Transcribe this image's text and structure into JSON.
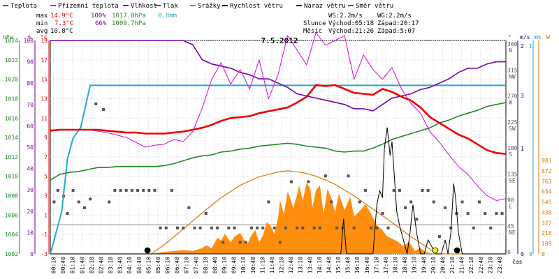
{
  "chart_data": {
    "type": "line",
    "title": "7.5.2012",
    "legend": [
      {
        "key": "temp",
        "label": "Teplota",
        "color": "#ee0000"
      },
      {
        "key": "dew",
        "label": "Přízemní teplota",
        "color": "#dd00dd"
      },
      {
        "key": "hum",
        "label": "Vlhkost",
        "color": "#7700aa"
      },
      {
        "key": "press",
        "label": "Tlak",
        "color": "#228822"
      },
      {
        "key": "rain",
        "label": "Srážky",
        "color": "#22aacc"
      },
      {
        "key": "wind",
        "label": "Rychlost větru",
        "color": "#000000"
      },
      {
        "key": "gust",
        "label": "Náraz větru",
        "color": "#000077"
      },
      {
        "key": "dir",
        "label": "Směr větru",
        "color": "#555555"
      }
    ],
    "stats": {
      "max_label": "max",
      "max_temp": "14.9°C",
      "max_hum": "100%",
      "max_press": "1017.8hPa",
      "max_rain": "0.8mm",
      "min_label": "min",
      "min_temp": "7.3°C",
      "min_hum": "66%",
      "min_press": "1009.7hPa",
      "avg_label": "avg",
      "avg_temp": "10.8°C",
      "ws": "WS:2.2m/s",
      "wg": "WG:2.2m/s",
      "sun_label": "Slunce",
      "sunrise": "Východ:05:18",
      "sunset": "Západ:20:17",
      "moon_label": "Měsíc",
      "moonrise": "Východ:21:26",
      "moonset": "Západ:5:07"
    },
    "axes": {
      "hpa_unit": "hPa",
      "hum_unit": "%",
      "temp_unit": "°C",
      "dir_unit": "°",
      "wind_unit": "m/s",
      "rain_unit": "mm",
      "sun_unit": "W",
      "x_label": "čas",
      "hpa_ticks": [
        "1024",
        "1022",
        "1020",
        "1018",
        "1016",
        "1014",
        "1012",
        "1010",
        "1008",
        "1006",
        "1004",
        "1002"
      ],
      "hum_ticks": [
        "100",
        "90",
        "80",
        "70",
        "60",
        "50",
        "40",
        "30",
        "20",
        "10",
        "0"
      ],
      "temp_ticks": [
        "19",
        "17",
        "15",
        "13",
        "11",
        "9",
        "7",
        "5",
        "3",
        "1",
        "-1",
        "-3"
      ],
      "dir_ticks": [
        {
          "deg": "360",
          "name": "N"
        },
        {
          "deg": "315",
          "name": "NW"
        },
        {
          "deg": "270",
          "name": "W"
        },
        {
          "deg": "225",
          "name": "SW"
        },
        {
          "deg": "180",
          "name": "S"
        },
        {
          "deg": "135",
          "name": "SE"
        },
        {
          "deg": "90",
          "name": "E"
        },
        {
          "deg": "45",
          "name": "NE"
        },
        {
          "deg": "0",
          "name": ""
        }
      ],
      "wind_ticks": [
        "2",
        "",
        "3",
        "",
        "1",
        "",
        "0"
      ],
      "rain_ticks": [
        "1",
        "",
        "0"
      ],
      "sun_ticks": [
        "981",
        "872",
        "763",
        "654",
        "545",
        "436",
        "327",
        "218",
        "109",
        "0"
      ],
      "x_ticks": [
        "00:10",
        "00:40",
        "01:10",
        "01:40",
        "02:10",
        "02:40",
        "03:10",
        "03:40",
        "04:10",
        "04:40",
        "05:10",
        "05:40",
        "06:10",
        "06:40",
        "07:10",
        "07:40",
        "08:10",
        "08:40",
        "09:10",
        "09:40",
        "10:10",
        "10:40",
        "11:10",
        "11:40",
        "12:10",
        "12:40",
        "13:10",
        "13:40",
        "14:10",
        "14:40",
        "15:10",
        "15:40",
        "16:10",
        "16:40",
        "17:10",
        "17:40",
        "18:10",
        "18:40",
        "19:10",
        "19:40",
        "20:10",
        "20:40",
        "21:10",
        "21:40",
        "22:10",
        "22:40",
        "23:10",
        "23:40"
      ]
    },
    "temp_c": {
      "x": [
        0,
        0.5,
        1,
        1.5,
        2,
        2.5,
        3,
        3.5,
        4,
        4.5,
        5,
        5.5,
        6,
        6.5,
        7,
        7.5,
        8,
        8.5,
        9,
        9.5,
        10,
        10.5,
        11,
        11.5,
        12,
        12.5,
        13,
        13.5,
        14,
        14.5,
        15,
        15.5,
        16,
        16.5,
        17,
        17.5,
        18,
        18.5,
        19,
        19.5,
        20,
        20.5,
        21,
        21.5,
        22,
        22.5,
        23,
        23.5,
        24
      ],
      "y": [
        9.7,
        9.8,
        9.8,
        9.8,
        9.8,
        9.8,
        9.7,
        9.6,
        9.5,
        9.5,
        9.4,
        9.4,
        9.4,
        9.5,
        9.6,
        9.8,
        10.0,
        10.3,
        10.7,
        11.0,
        11.1,
        11.2,
        11.5,
        11.7,
        11.9,
        12.1,
        12.6,
        13.2,
        14.4,
        14.3,
        14.4,
        14.0,
        13.6,
        13.5,
        13.4,
        14.0,
        13.7,
        13.2,
        12.8,
        12.1,
        11.1,
        10.5,
        9.9,
        9.3,
        8.9,
        8.3,
        7.7,
        7.4,
        7.3
      ]
    },
    "dew_c": {
      "x": [
        0,
        1,
        2,
        3,
        4,
        4.5,
        5,
        5.5,
        6,
        6.5,
        7,
        7.5,
        8,
        8.5,
        9,
        9.5,
        10,
        10.5,
        11,
        11.5,
        12,
        12.5,
        13,
        13.5,
        14,
        14.5,
        15,
        15.5,
        16,
        16.5,
        17,
        17.5,
        18,
        18.5,
        19,
        19.5,
        20,
        20.5,
        21,
        21.5,
        22,
        22.5,
        23,
        23.5,
        24
      ],
      "y": [
        9.8,
        9.8,
        9.8,
        9.5,
        9.0,
        8.5,
        8.0,
        8.2,
        8.3,
        8.8,
        8.6,
        9.6,
        12.0,
        15.0,
        16.7,
        14.5,
        16.0,
        14.0,
        17.0,
        13.0,
        15.5,
        19.5,
        18.0,
        16.5,
        19.8,
        18.5,
        19.0,
        19.5,
        15.0,
        17.5,
        16.0,
        15.0,
        16.2,
        14.0,
        12.5,
        11.5,
        9.6,
        8.5,
        7.2,
        6.0,
        5.2,
        4.0,
        3.0,
        2.5,
        2.7
      ]
    },
    "humidity_pct": {
      "x": [
        0,
        1,
        2,
        3,
        4,
        5,
        6,
        7,
        7.5,
        8,
        8.5,
        9,
        9.5,
        10,
        10.5,
        11,
        11.5,
        12,
        12.5,
        13,
        13.5,
        14,
        14.5,
        15,
        15.5,
        16,
        16.5,
        17,
        17.5,
        18,
        18.5,
        19,
        19.5,
        20,
        20.5,
        21,
        21.5,
        22,
        22.5,
        23,
        23.5,
        24
      ],
      "y": [
        100,
        100,
        100,
        100,
        100,
        100,
        100,
        100,
        98,
        91,
        89,
        88,
        87,
        85,
        84,
        82,
        82,
        80,
        78,
        75,
        74,
        73,
        72,
        71,
        70,
        68,
        68,
        67,
        70,
        73,
        74,
        75,
        77,
        78,
        80,
        82,
        85,
        87,
        87,
        89,
        90,
        90
      ]
    },
    "pressure_hpa": {
      "x": [
        0,
        0.5,
        1,
        1.5,
        2,
        2.5,
        3,
        3.5,
        4,
        4.5,
        5,
        5.5,
        6,
        6.5,
        7,
        7.5,
        8,
        8.5,
        9,
        9.5,
        10,
        10.5,
        11,
        11.5,
        12,
        12.5,
        13,
        13.5,
        14,
        14.5,
        15,
        15.5,
        16,
        16.5,
        17,
        17.5,
        18,
        18.5,
        19,
        19.5,
        20,
        20.5,
        21,
        21.5,
        22,
        22.5,
        23,
        23.5,
        24
      ],
      "y": [
        1009.6,
        1010.2,
        1010.4,
        1010.5,
        1010.7,
        1010.9,
        1010.9,
        1011.0,
        1011.0,
        1011.0,
        1011.0,
        1011.0,
        1011.1,
        1011.3,
        1011.6,
        1011.9,
        1012.1,
        1012.2,
        1012.5,
        1012.6,
        1012.8,
        1012.9,
        1013.1,
        1013.2,
        1013.3,
        1013.4,
        1013.3,
        1013.1,
        1013.0,
        1012.9,
        1012.6,
        1012.5,
        1012.6,
        1012.6,
        1012.9,
        1013.3,
        1013.8,
        1014.1,
        1014.4,
        1014.7,
        1015.0,
        1015.5,
        1015.8,
        1016.2,
        1016.5,
        1016.8,
        1017.2,
        1017.4,
        1017.6
      ]
    },
    "rain_mm": {
      "x": [
        0,
        0.6,
        0.9,
        1.2,
        1.6,
        1.9,
        2.1,
        3,
        6,
        9,
        12,
        15,
        18,
        21,
        24
      ],
      "y": [
        0,
        0.2,
        0.45,
        0.55,
        0.6,
        0.72,
        0.8,
        0.8,
        0.8,
        0.8,
        0.8,
        0.8,
        0.8,
        0.8,
        0.8
      ]
    },
    "wind_ms": {
      "x": [
        0,
        15.3,
        15.45,
        15.6,
        15.75,
        16,
        17,
        17.2,
        17.35,
        17.5,
        17.6,
        17.75,
        17.9,
        18,
        18.1,
        18.25,
        18.4,
        18.6,
        18.8,
        18.95,
        19.1,
        19.3,
        19.5,
        19.7,
        19.9,
        20.1,
        20.3,
        20.6,
        20.8,
        20.95,
        21.1,
        21.25,
        21.35,
        21.5,
        21.7,
        22,
        24
      ],
      "y": [
        0,
        0,
        0.5,
        0,
        0,
        0,
        0,
        0.7,
        0.9,
        0.8,
        1.5,
        1.8,
        1.4,
        1.6,
        1.2,
        0.6,
        0.4,
        0.2,
        0,
        0.3,
        0.7,
        0.3,
        0,
        0,
        0.2,
        0.1,
        0,
        0,
        0.2,
        0,
        0.3,
        1.0,
        0.8,
        0.3,
        0,
        0,
        0
      ]
    },
    "wind_dir_deg": {
      "x": [
        0.2,
        0.4,
        0.7,
        0.9,
        1.2,
        1.5,
        1.8,
        2.1,
        2.4,
        2.8,
        3.1,
        3.4,
        3.7,
        4,
        4.3,
        4.6,
        4.9,
        5.2,
        5.5,
        5.8,
        6.1,
        6.4,
        6.7,
        7,
        7.3,
        7.6,
        7.9,
        8.2,
        8.5,
        8.8,
        9.1,
        9.4,
        9.7,
        10,
        10.3,
        10.6,
        10.9,
        11.2,
        11.5,
        11.8,
        12.1,
        12.4,
        12.7,
        13,
        13.3,
        13.6,
        13.9,
        14.2,
        14.5,
        14.8,
        15.1,
        15.4,
        15.7,
        16,
        16.3,
        16.6,
        16.9,
        17.2,
        17.5,
        17.8,
        18.1,
        18.4,
        18.7,
        19,
        19.3,
        19.6,
        19.9,
        20.2,
        20.5,
        20.8,
        21.1,
        21.4,
        21.7,
        22,
        22.3,
        22.6,
        22.9,
        23.2,
        23.5,
        23.8
      ],
      "y": [
        90,
        110,
        100,
        70,
        110,
        90,
        80,
        95,
        260,
        250,
        90,
        110,
        110,
        110,
        110,
        110,
        110,
        110,
        110,
        45,
        45,
        110,
        45,
        45,
        80,
        45,
        45,
        70,
        45,
        45,
        20,
        45,
        45,
        20,
        20,
        45,
        45,
        45,
        90,
        45,
        20,
        45,
        125,
        45,
        45,
        125,
        45,
        45,
        135,
        90,
        45,
        45,
        135,
        45,
        90,
        110,
        45,
        45,
        70,
        45,
        110,
        110,
        80,
        90,
        60,
        110,
        110,
        90,
        30,
        80,
        45,
        70,
        90,
        70,
        45,
        90,
        70,
        45,
        70,
        70
      ]
    },
    "sun_w": {
      "x": [
        0,
        5.3,
        6,
        7,
        8,
        9,
        10,
        11,
        12,
        12.5,
        13,
        13.5,
        14,
        14.5,
        15,
        16,
        17,
        18,
        19,
        20,
        20.3,
        24
      ],
      "y": [
        0,
        0,
        95,
        260,
        430,
        590,
        720,
        810,
        860,
        872,
        862,
        845,
        815,
        775,
        730,
        610,
        470,
        330,
        180,
        50,
        0,
        0
      ],
      "fill_x": [
        0,
        5.3,
        6,
        6.5,
        7,
        7.5,
        8,
        8.2,
        8.5,
        8.8,
        9,
        9.2,
        9.5,
        9.7,
        10,
        10.2,
        10.4,
        10.6,
        10.8,
        11,
        11.2,
        11.4,
        11.6,
        11.8,
        12,
        12.1,
        12.3,
        12.5,
        12.6,
        12.8,
        13,
        13.1,
        13.3,
        13.5,
        13.7,
        13.8,
        14,
        14.2,
        14.4,
        14.6,
        14.8,
        15,
        15.2,
        15.5,
        15.8,
        16,
        16.3,
        16.6,
        16.9,
        17.2,
        17.5,
        17.7,
        18,
        18.3,
        18.6,
        18.9,
        19.2,
        19.5,
        19.8,
        20,
        20.3,
        24
      ],
      "fill_y": [
        0,
        0,
        20,
        30,
        40,
        30,
        60,
        90,
        60,
        170,
        140,
        210,
        120,
        180,
        220,
        150,
        110,
        200,
        250,
        120,
        190,
        330,
        300,
        210,
        380,
        560,
        420,
        650,
        610,
        480,
        620,
        720,
        560,
        750,
        680,
        480,
        670,
        720,
        420,
        680,
        590,
        440,
        630,
        460,
        600,
        390,
        450,
        520,
        420,
        300,
        250,
        190,
        160,
        130,
        80,
        130,
        30,
        60,
        20,
        10,
        0,
        0
      ]
    },
    "markers": [
      {
        "kind": "moonset",
        "x": 5.12,
        "color": "#000000"
      },
      {
        "kind": "sunset",
        "x": 20.28,
        "color": "#ffee00"
      },
      {
        "kind": "moonrise",
        "x": 21.43,
        "color": "#000000"
      }
    ]
  }
}
